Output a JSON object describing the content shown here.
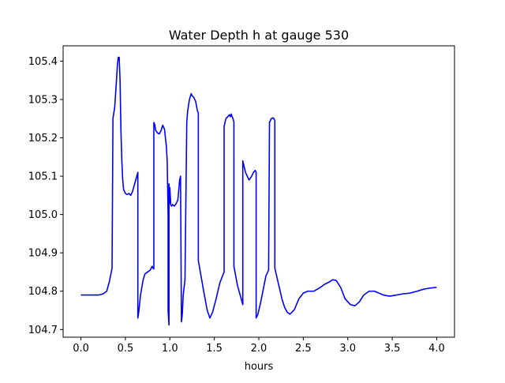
{
  "chart_data": {
    "type": "line",
    "title": "Water Depth h at gauge 530",
    "xlabel": "hours",
    "ylabel": "",
    "xlim": [
      -0.2,
      4.2
    ],
    "ylim": [
      104.68,
      105.44
    ],
    "xticks": [
      0.0,
      0.5,
      1.0,
      1.5,
      2.0,
      2.5,
      3.0,
      3.5,
      4.0
    ],
    "xtick_labels": [
      "0.0",
      "0.5",
      "1.0",
      "1.5",
      "2.0",
      "2.5",
      "3.0",
      "3.5",
      "4.0"
    ],
    "yticks": [
      104.7,
      104.8,
      104.9,
      105.0,
      105.1,
      105.2,
      105.3,
      105.4
    ],
    "ytick_labels": [
      "104.7",
      "104.8",
      "104.9",
      "105.0",
      "105.1",
      "105.2",
      "105.3",
      "105.4"
    ],
    "grid": false,
    "series": [
      {
        "color": "#0000ff",
        "x": [
          0.0,
          0.1,
          0.2,
          0.25,
          0.29,
          0.32,
          0.35,
          0.36,
          0.36,
          0.38,
          0.4,
          0.41,
          0.42,
          0.43,
          0.44,
          0.45,
          0.46,
          0.47,
          0.48,
          0.5,
          0.52,
          0.54,
          0.56,
          0.58,
          0.61,
          0.64,
          0.64,
          0.65,
          0.67,
          0.7,
          0.72,
          0.75,
          0.78,
          0.8,
          0.81,
          0.82,
          0.82,
          0.83,
          0.84,
          0.86,
          0.88,
          0.9,
          0.92,
          0.94,
          0.95,
          0.96,
          0.97,
          0.98,
          0.98,
          0.99,
          0.99,
          1.0,
          1.0,
          1.01,
          1.02,
          1.03,
          1.05,
          1.07,
          1.09,
          1.11,
          1.12,
          1.13,
          1.14,
          1.15,
          1.17,
          1.19,
          1.2,
          1.22,
          1.24,
          1.25,
          1.27,
          1.29,
          1.31,
          1.32,
          1.32,
          1.35,
          1.38,
          1.42,
          1.45,
          1.48,
          1.52,
          1.56,
          1.6,
          1.61,
          1.61,
          1.63,
          1.65,
          1.67,
          1.68,
          1.69,
          1.7,
          1.71,
          1.72,
          1.72,
          1.74,
          1.76,
          1.79,
          1.82,
          1.82,
          1.83,
          1.85,
          1.87,
          1.89,
          1.92,
          1.94,
          1.96,
          1.97,
          1.97,
          1.99,
          2.02,
          2.05,
          2.08,
          2.11,
          2.12,
          2.14,
          2.16,
          2.17,
          2.18,
          2.18,
          2.2,
          2.23,
          2.26,
          2.29,
          2.32,
          2.35,
          2.4,
          2.45,
          2.5,
          2.55,
          2.62,
          2.68,
          2.74,
          2.8,
          2.83,
          2.87,
          2.92,
          2.97,
          3.03,
          3.08,
          3.13,
          3.18,
          3.24,
          3.3,
          3.35,
          3.4,
          3.47,
          3.55,
          3.62,
          3.7,
          3.78,
          3.85,
          3.92,
          4.0
        ],
        "y": [
          104.79,
          104.79,
          104.79,
          104.793,
          104.8,
          104.825,
          104.86,
          105.24,
          105.25,
          105.28,
          105.35,
          105.39,
          105.41,
          105.41,
          105.35,
          105.22,
          105.14,
          105.09,
          105.065,
          105.055,
          105.052,
          105.055,
          105.05,
          105.06,
          105.085,
          105.11,
          104.73,
          104.745,
          104.79,
          104.83,
          104.845,
          104.85,
          104.855,
          104.865,
          104.86,
          104.858,
          105.24,
          105.235,
          105.22,
          105.213,
          105.21,
          105.218,
          105.233,
          105.222,
          105.2,
          105.18,
          105.14,
          105.0,
          104.75,
          104.712,
          105.08,
          105.03,
          105.07,
          105.025,
          105.022,
          105.026,
          105.022,
          105.028,
          105.038,
          105.09,
          105.1,
          104.72,
          104.74,
          104.79,
          104.83,
          105.24,
          105.27,
          105.3,
          105.315,
          105.31,
          105.305,
          105.295,
          105.27,
          105.265,
          104.88,
          104.84,
          104.8,
          104.75,
          104.73,
          104.745,
          104.78,
          104.82,
          104.845,
          104.85,
          105.23,
          105.25,
          105.255,
          105.26,
          105.255,
          105.262,
          105.255,
          105.25,
          105.24,
          104.865,
          104.84,
          104.815,
          104.79,
          104.765,
          105.14,
          105.13,
          105.11,
          105.1,
          105.09,
          105.1,
          105.11,
          105.115,
          105.11,
          104.73,
          104.74,
          104.77,
          104.805,
          104.84,
          104.855,
          105.24,
          105.25,
          105.252,
          105.25,
          105.245,
          104.86,
          104.84,
          104.81,
          104.78,
          104.758,
          104.745,
          104.74,
          104.752,
          104.78,
          104.795,
          104.8,
          104.8,
          104.808,
          104.818,
          104.825,
          104.83,
          104.828,
          104.81,
          104.78,
          104.765,
          104.762,
          104.772,
          104.79,
          104.8,
          104.8,
          104.795,
          104.79,
          104.787,
          104.79,
          104.793,
          104.795,
          104.8,
          104.805,
          104.808,
          104.81
        ]
      }
    ]
  }
}
